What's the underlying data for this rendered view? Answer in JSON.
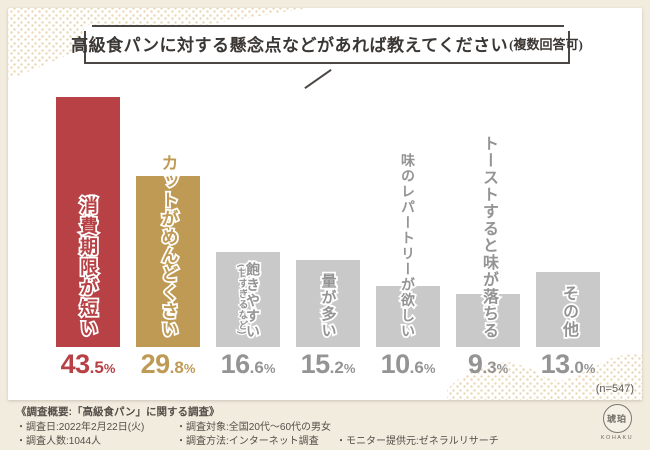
{
  "page": {
    "background_color": "#f2ecdf",
    "card_color": "#ffffff",
    "dot_color": "#ebd8b8"
  },
  "title": {
    "main": "高級食パンに対する懸念点などがあれば教えてください",
    "note": "(複数回答可)"
  },
  "chart_data": {
    "type": "bar",
    "orientation": "vertical",
    "title": "高級食パンに対する懸念点などがあれば教えてください(複数回答可)",
    "unit": "%",
    "ylim": [
      0,
      45
    ],
    "grid": false,
    "sample_size_label": "(n=547)",
    "categories": [
      "消費期限が短い",
      "カットがめんどくさい",
      "飽きやすい(甘すぎるなど)",
      "量が多い",
      "味のレパートリーが欲しい",
      "トーストすると味が落ちる",
      "その他"
    ],
    "values": [
      43.5,
      29.8,
      16.6,
      15.2,
      10.6,
      9.3,
      13.0
    ],
    "bars": [
      {
        "label": "消費期限が短い",
        "note": "",
        "value": 43.5,
        "value_label": "43.5%",
        "color": "#b74144",
        "text_color": "#b74144"
      },
      {
        "label": "カットがめんどくさい",
        "note": "",
        "value": 29.8,
        "value_label": "29.8%",
        "color": "#bf9a55",
        "text_color": "#bf9a55"
      },
      {
        "label": "飽きやすい",
        "note": "(甘すぎるなど)",
        "value": 16.6,
        "value_label": "16.6%",
        "color": "#c9c9c9",
        "text_color": "#949494"
      },
      {
        "label": "量が多い",
        "note": "",
        "value": 15.2,
        "value_label": "15.2%",
        "color": "#c9c9c9",
        "text_color": "#949494"
      },
      {
        "label": "味のレパートリーが欲しい",
        "note": "",
        "value": 10.6,
        "value_label": "10.6%",
        "color": "#c9c9c9",
        "text_color": "#949494"
      },
      {
        "label": "トーストすると味が落ちる",
        "note": "",
        "value": 9.3,
        "value_label": "9.3%",
        "color": "#c9c9c9",
        "text_color": "#949494"
      },
      {
        "label": "その他",
        "note": "",
        "value": 13.0,
        "value_label": "13.0%",
        "color": "#c9c9c9",
        "text_color": "#949494"
      }
    ]
  },
  "footer": {
    "heading": "《調査概要:「高級食パン」に関する調査》",
    "items": [
      {
        "label": "・調査日:2022年2月22日(火)"
      },
      {
        "label": "・調査対象:全国20代〜60代の男女"
      },
      {
        "label": "・調査人数:1044人"
      },
      {
        "label": "・調査方法:インターネット調査"
      },
      {
        "label": "・モニター提供元:ゼネラルリサーチ"
      }
    ],
    "logo": {
      "kanji": "琥珀",
      "latin": "KOHAKU"
    }
  }
}
